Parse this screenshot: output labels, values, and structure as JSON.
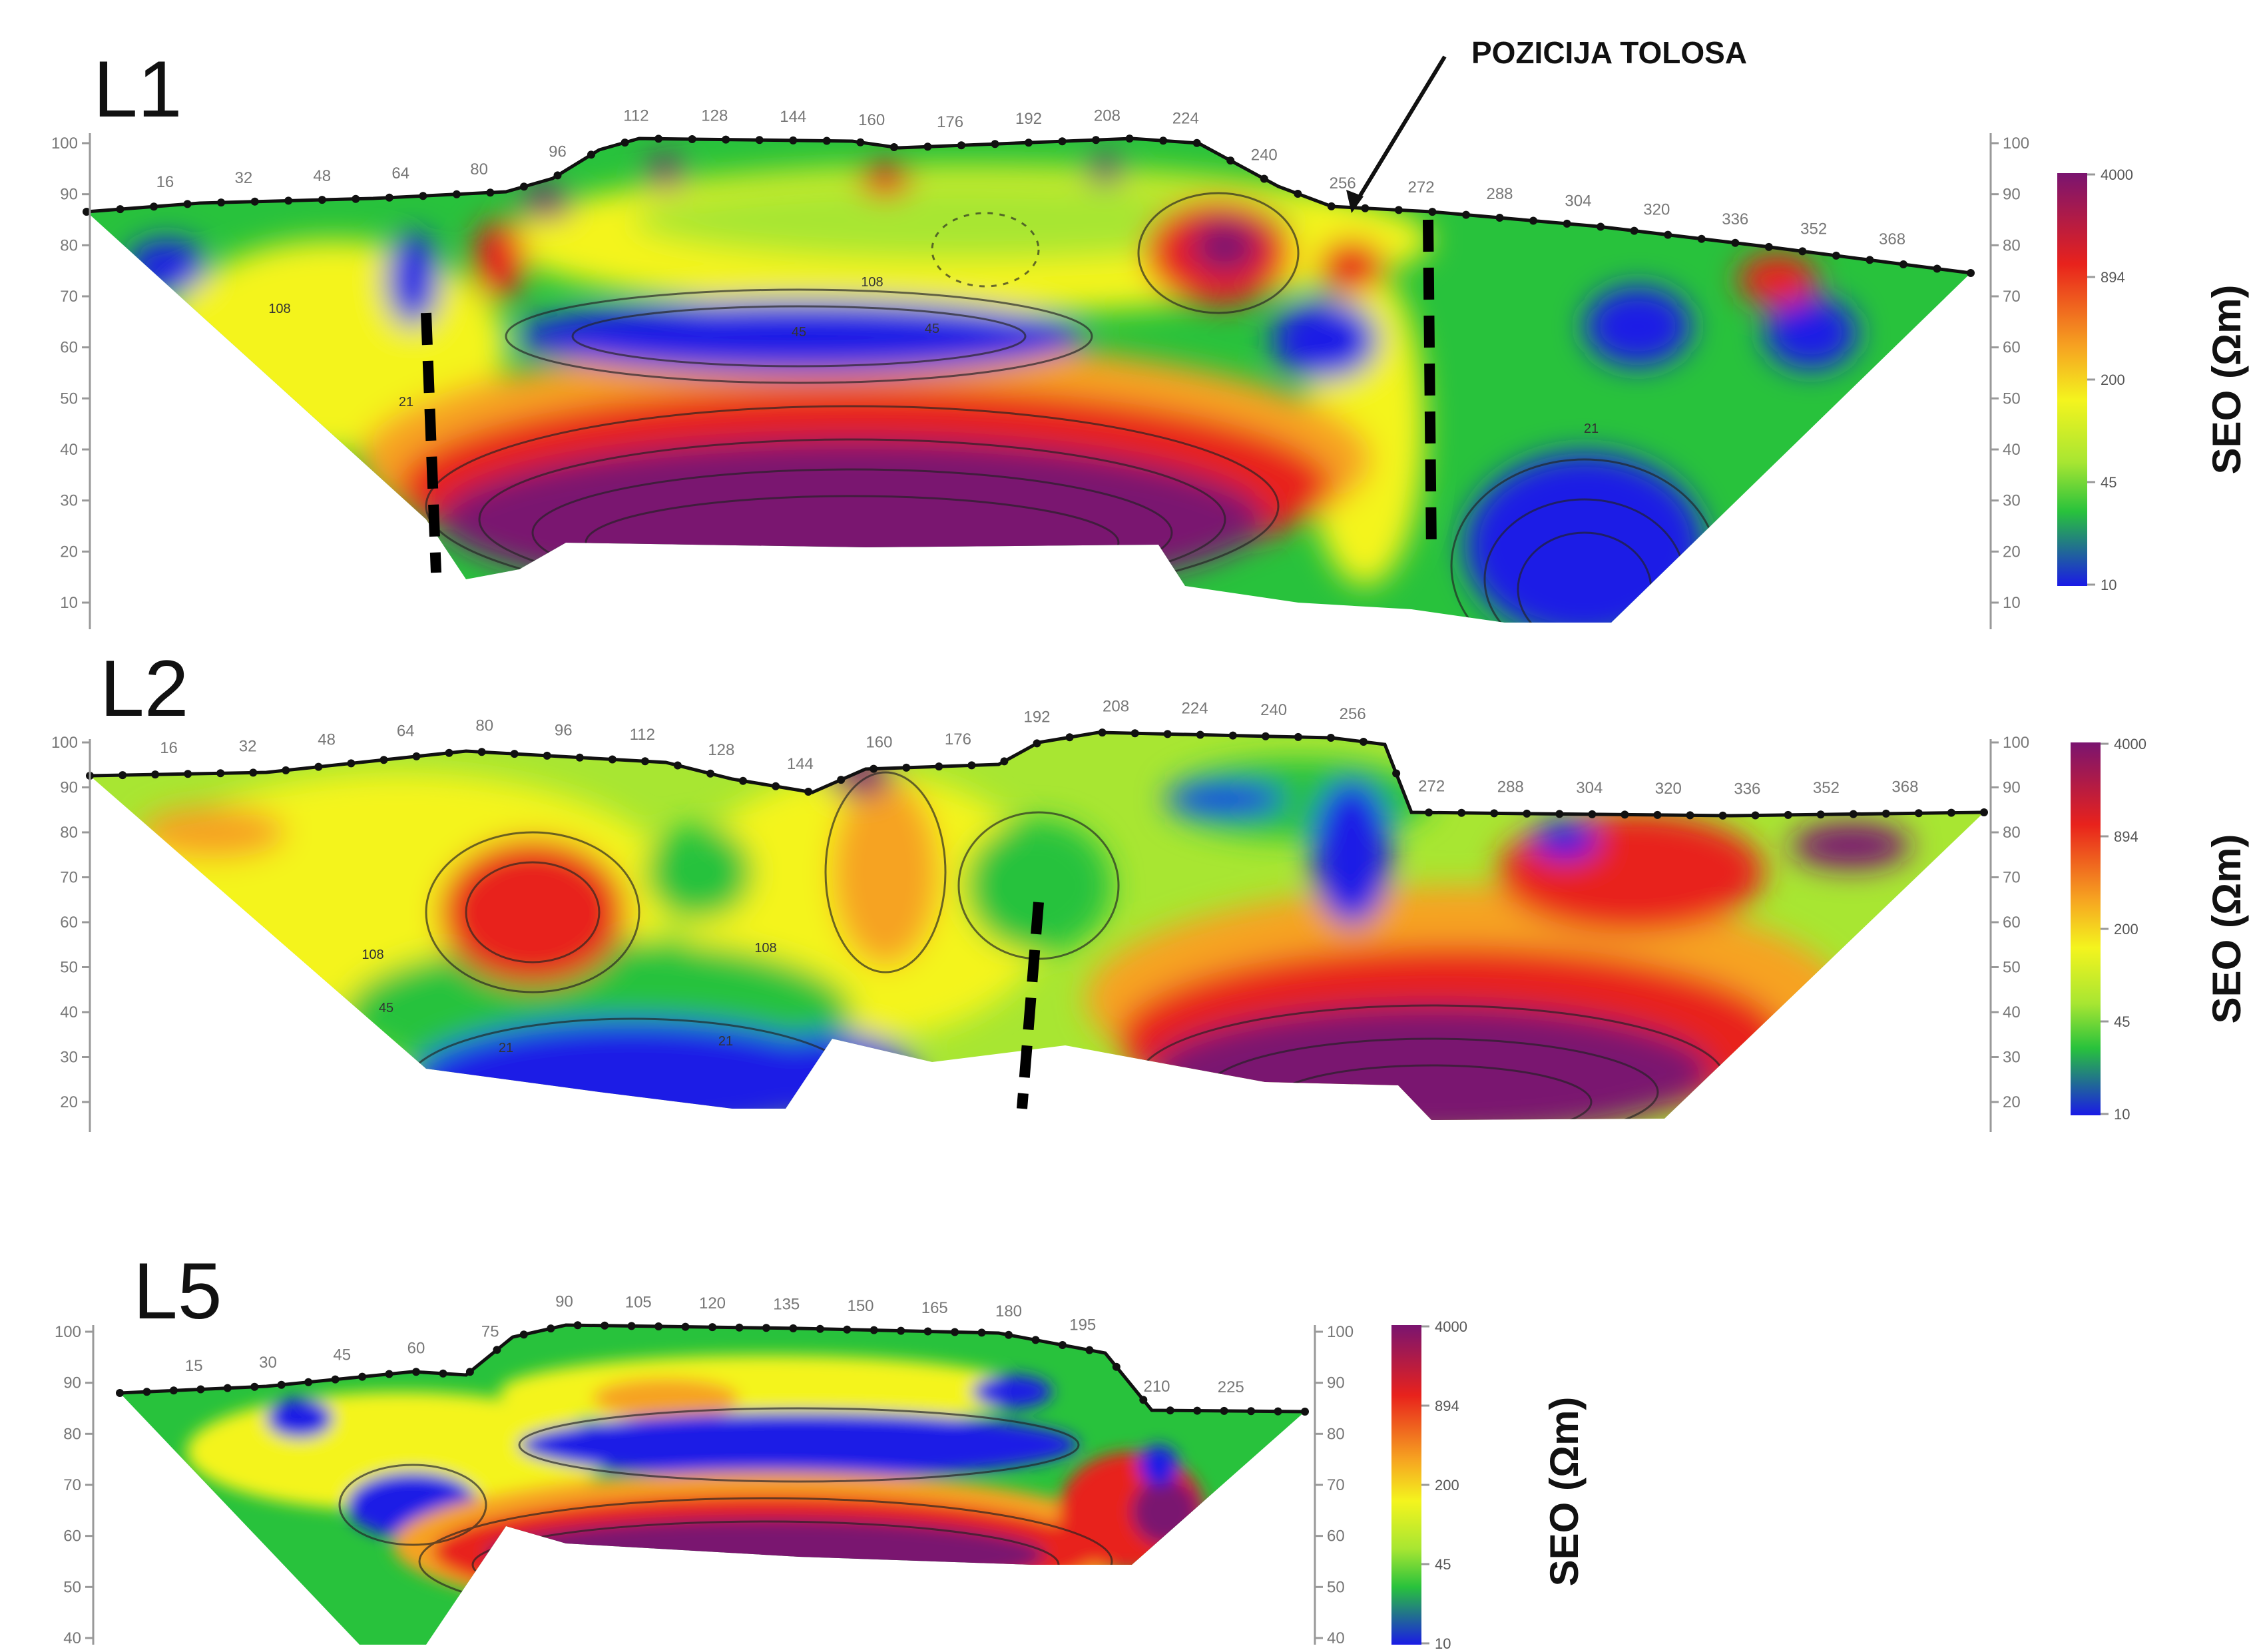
{
  "colors": {
    "purple": "#7a1470",
    "red": "#e8221c",
    "orange": "#f6a321",
    "yellow": "#f4f41e",
    "lightgreen": "#a8e632",
    "green": "#28c23c",
    "blue": "#1a1ae6"
  },
  "annotation": "POZICIJA TOLOSA",
  "chart_data": [
    {
      "type": "heatmap",
      "title": "L1",
      "colorbar": {
        "title": "SEO (Ωm)",
        "ticks": [
          "4000",
          "894",
          "200",
          "45",
          "10"
        ]
      },
      "x_ticks": [
        "16",
        "32",
        "48",
        "64",
        "80",
        "96",
        "112",
        "128",
        "144",
        "160",
        "176",
        "192",
        "208",
        "224",
        "240",
        "256",
        "272",
        "288",
        "304",
        "320",
        "336",
        "352",
        "368"
      ],
      "y_ticks": [
        "100",
        "90",
        "80",
        "70",
        "60",
        "50",
        "40",
        "30",
        "20",
        "10"
      ],
      "y_ticks_right": [
        "100",
        "90",
        "80",
        "70",
        "60",
        "50",
        "40",
        "30",
        "20",
        "10"
      ],
      "contour_labels": [
        "108",
        "108",
        "45",
        "21",
        "45",
        "21"
      ]
    },
    {
      "type": "heatmap",
      "title": "L2",
      "colorbar": {
        "title": "SEO (Ωm)",
        "ticks": [
          "4000",
          "894",
          "200",
          "45",
          "10"
        ]
      },
      "x_ticks": [
        "16",
        "32",
        "48",
        "64",
        "80",
        "96",
        "112",
        "128",
        "144",
        "160",
        "176",
        "192",
        "208",
        "224",
        "240",
        "256",
        "272",
        "288",
        "304",
        "320",
        "336",
        "352",
        "368"
      ],
      "y_ticks": [
        "100",
        "90",
        "80",
        "70",
        "60",
        "50",
        "40",
        "30",
        "20"
      ],
      "y_ticks_right": [
        "100",
        "90",
        "80",
        "70",
        "60",
        "50",
        "40",
        "30",
        "20"
      ],
      "contour_labels": [
        "108",
        "45",
        "21",
        "108",
        "21"
      ]
    },
    {
      "type": "heatmap",
      "title": "L5",
      "colorbar": {
        "title": "SEO (Ωm)",
        "ticks": [
          "4000",
          "894",
          "200",
          "45",
          "10"
        ]
      },
      "x_ticks": [
        "15",
        "30",
        "45",
        "60",
        "75",
        "90",
        "105",
        "120",
        "135",
        "150",
        "165",
        "180",
        "195",
        "210",
        "225"
      ],
      "y_ticks": [
        "100",
        "90",
        "80",
        "70",
        "60",
        "50",
        "40"
      ],
      "y_ticks_right": [
        "100",
        "90",
        "80",
        "70",
        "60",
        "50",
        "40"
      ]
    }
  ]
}
